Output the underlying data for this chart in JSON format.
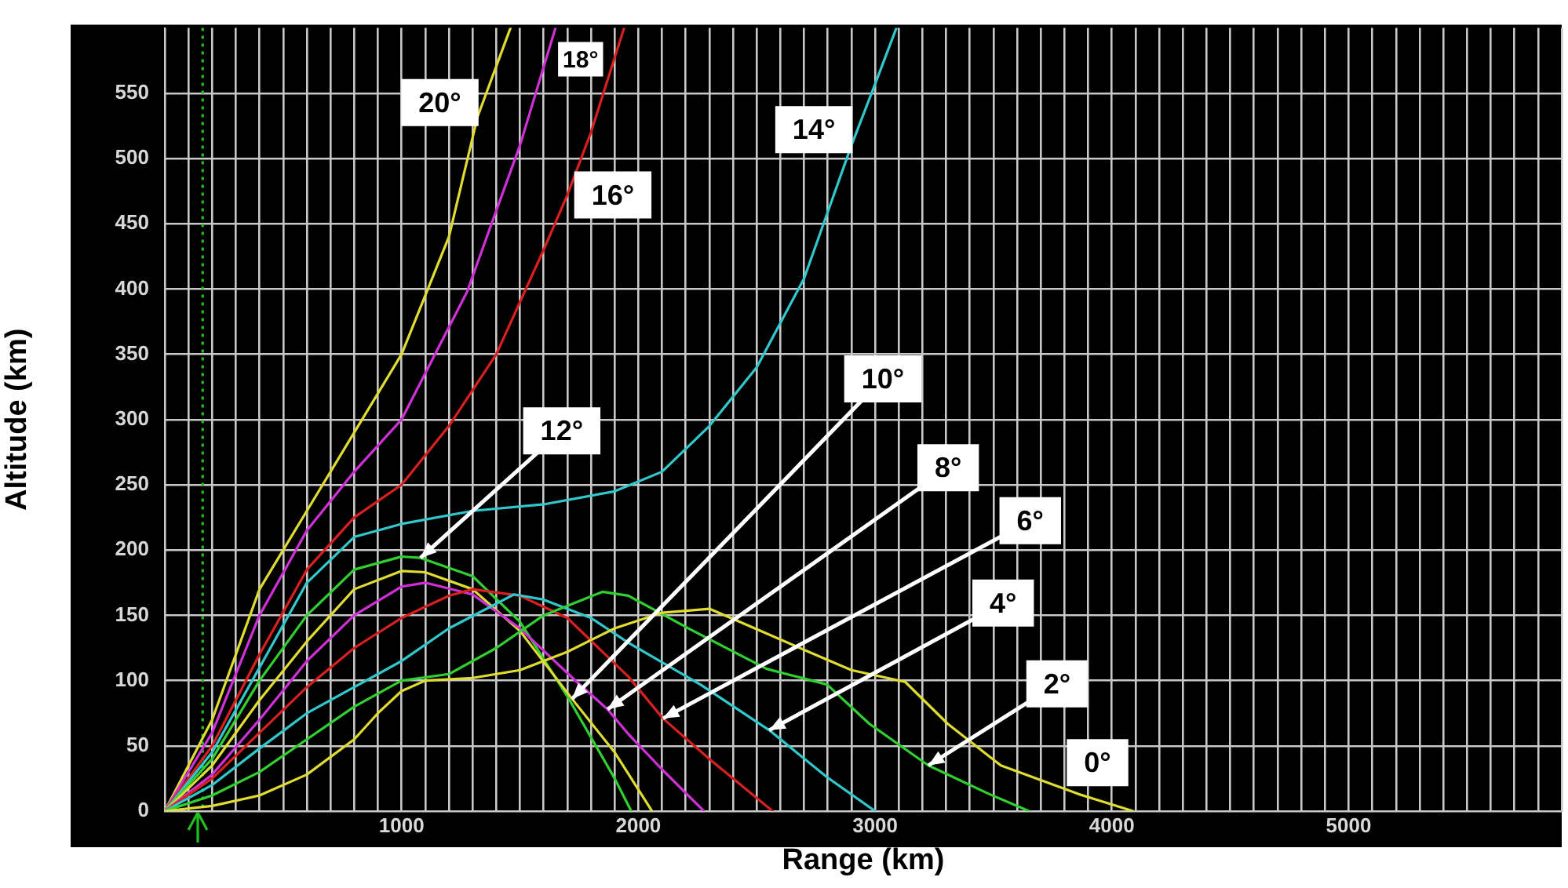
{
  "chart_data": {
    "type": "line",
    "xlabel": "Range (km)",
    "ylabel": "Altitude (km)",
    "xlim": [
      0,
      5900
    ],
    "ylim": [
      0,
      600
    ],
    "xticks": [
      {
        "value": 0,
        "label": null
      },
      {
        "value": 100,
        "label": null
      },
      {
        "value": 200,
        "label": null
      },
      {
        "value": 300,
        "label": null
      },
      {
        "value": 400,
        "label": null
      },
      {
        "value": 500,
        "label": null
      },
      {
        "value": 600,
        "label": null
      },
      {
        "value": 700,
        "label": null
      },
      {
        "value": 800,
        "label": null
      },
      {
        "value": 900,
        "label": null
      },
      1000,
      {
        "value": 1100,
        "label": null
      },
      {
        "value": 1200,
        "label": null
      },
      {
        "value": 1300,
        "label": null
      },
      {
        "value": 1400,
        "label": null
      },
      {
        "value": 1500,
        "label": null
      },
      {
        "value": 1600,
        "label": null
      },
      {
        "value": 1700,
        "label": null
      },
      {
        "value": 1800,
        "label": null
      },
      {
        "value": 1900,
        "label": null
      },
      2000,
      {
        "value": 2100,
        "label": null
      },
      {
        "value": 2200,
        "label": null
      },
      {
        "value": 2300,
        "label": null
      },
      {
        "value": 2400,
        "label": null
      },
      {
        "value": 2500,
        "label": null
      },
      {
        "value": 2600,
        "label": null
      },
      {
        "value": 2700,
        "label": null
      },
      {
        "value": 2800,
        "label": null
      },
      {
        "value": 2900,
        "label": null
      },
      3000,
      {
        "value": 3100,
        "label": null
      },
      {
        "value": 3200,
        "label": null
      },
      {
        "value": 3300,
        "label": null
      },
      {
        "value": 3400,
        "label": null
      },
      {
        "value": 3500,
        "label": null
      },
      {
        "value": 3600,
        "label": null
      },
      {
        "value": 3700,
        "label": null
      },
      {
        "value": 3800,
        "label": null
      },
      {
        "value": 3900,
        "label": null
      },
      4000,
      {
        "value": 4100,
        "label": null
      },
      {
        "value": 4200,
        "label": null
      },
      {
        "value": 4300,
        "label": null
      },
      {
        "value": 4400,
        "label": null
      },
      {
        "value": 4500,
        "label": null
      },
      {
        "value": 4600,
        "label": null
      },
      {
        "value": 4700,
        "label": null
      },
      {
        "value": 4800,
        "label": null
      },
      {
        "value": 4900,
        "label": null
      },
      5000,
      {
        "value": 5100,
        "label": null
      },
      {
        "value": 5200,
        "label": null
      },
      {
        "value": 5300,
        "label": null
      },
      {
        "value": 5400,
        "label": null
      },
      {
        "value": 5500,
        "label": null
      },
      {
        "value": 5600,
        "label": null
      },
      {
        "value": 5700,
        "label": null
      },
      {
        "value": 5800,
        "label": null
      },
      {
        "value": 5900,
        "label": null
      }
    ],
    "yticks": [
      0,
      50,
      100,
      150,
      200,
      250,
      300,
      350,
      400,
      450,
      500,
      550
    ],
    "grid": true,
    "legend": false,
    "marker": "none",
    "line_style": "solid",
    "ref_lines": [
      {
        "axis": "x",
        "value": 160,
        "color": "#20c020",
        "line_style": "dotted"
      }
    ],
    "series": [
      {
        "name": "0°",
        "color": "#e0dc30",
        "x": [
          0,
          200,
          400,
          600,
          800,
          900,
          1000,
          1100,
          1300,
          1500,
          1700,
          1900,
          2100,
          2300,
          2467,
          2720,
          2900,
          3127,
          3306,
          3531,
          3860,
          4090
        ],
        "values": [
          0,
          4,
          12,
          28,
          55,
          75,
          92,
          100,
          102,
          108,
          122,
          140,
          152,
          155,
          142,
          122,
          108,
          99,
          67,
          35,
          13,
          0
        ]
      },
      {
        "name": "2°",
        "color": "#30d030",
        "x": [
          0,
          200,
          400,
          600,
          800,
          1000,
          1200,
          1400,
          1600,
          1848,
          1958,
          2212,
          2542,
          2797,
          2975,
          3225,
          3483,
          3650
        ],
        "values": [
          0,
          12,
          30,
          55,
          80,
          100,
          105,
          125,
          150,
          168,
          165,
          140,
          109,
          97,
          67,
          35,
          13,
          0
        ]
      },
      {
        "name": "4°",
        "color": "#30c8cc",
        "x": [
          0,
          200,
          400,
          600,
          800,
          1000,
          1200,
          1475,
          1600,
          1800,
          1958,
          2262,
          2553,
          2797,
          3000
        ],
        "values": [
          0,
          20,
          48,
          75,
          95,
          115,
          140,
          166,
          162,
          148,
          129,
          97,
          62,
          26,
          0
        ]
      },
      {
        "name": "6°",
        "color": "#d82020",
        "x": [
          0,
          200,
          400,
          600,
          800,
          1000,
          1200,
          1300,
          1500,
          1700,
          1958,
          2104,
          2300,
          2567
        ],
        "values": [
          0,
          25,
          60,
          95,
          125,
          148,
          165,
          170,
          165,
          148,
          103,
          71,
          40,
          0
        ]
      },
      {
        "name": "8°",
        "color": "#d030d8",
        "x": [
          0,
          200,
          400,
          600,
          800,
          1000,
          1100,
          1300,
          1500,
          1740,
          1870,
          1958,
          2100,
          2277
        ],
        "values": [
          0,
          28,
          70,
          115,
          150,
          172,
          175,
          166,
          140,
          99,
          78,
          59,
          32,
          0
        ]
      },
      {
        "name": "10°",
        "color": "#e0dc30",
        "x": [
          0,
          200,
          400,
          600,
          800,
          1000,
          1100,
          1300,
          1500,
          1720,
          1900,
          2058
        ],
        "values": [
          0,
          35,
          85,
          130,
          170,
          184,
          183,
          170,
          138,
          86,
          45,
          0
        ]
      },
      {
        "name": "12°",
        "color": "#30d030",
        "x": [
          0,
          200,
          400,
          600,
          800,
          1000,
          1080,
          1300,
          1500,
          1700,
          1900,
          1970
        ],
        "values": [
          0,
          40,
          100,
          150,
          185,
          195,
          194,
          180,
          145,
          88,
          25,
          0
        ]
      },
      {
        "name": "14°",
        "color": "#30c8cc",
        "x": [
          0,
          200,
          400,
          600,
          800,
          1000,
          1300,
          1600,
          1900,
          2100,
          2300,
          2500,
          2700,
          2900,
          3000,
          3090
        ],
        "values": [
          0,
          45,
          110,
          175,
          210,
          220,
          230,
          235,
          245,
          260,
          295,
          340,
          408,
          510,
          557,
          600
        ]
      },
      {
        "name": "16°",
        "color": "#d82020",
        "x": [
          0,
          200,
          400,
          600,
          800,
          1000,
          1200,
          1400,
          1600,
          1700,
          1800,
          1940
        ],
        "values": [
          0,
          50,
          120,
          185,
          225,
          250,
          295,
          350,
          430,
          472,
          520,
          600
        ]
      },
      {
        "name": "18°",
        "color": "#d030d8",
        "x": [
          0,
          200,
          400,
          600,
          800,
          1000,
          1277,
          1400,
          1500,
          1650
        ],
        "values": [
          0,
          60,
          150,
          215,
          260,
          300,
          398,
          460,
          510,
          600
        ]
      },
      {
        "name": "20°",
        "color": "#e0dc30",
        "x": [
          0,
          200,
          400,
          600,
          800,
          1000,
          1200,
          1321,
          1460
        ],
        "values": [
          0,
          70,
          170,
          230,
          290,
          350,
          440,
          532,
          600
        ]
      }
    ]
  }
}
